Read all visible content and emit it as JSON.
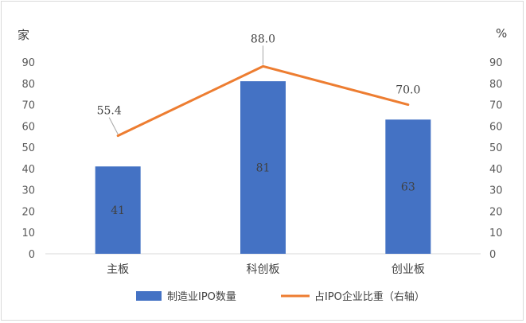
{
  "chart_data": {
    "type": "bar",
    "categories": [
      "主板",
      "科创板",
      "创业板"
    ],
    "series": [
      {
        "name": "制造业IPO数量",
        "type": "bar",
        "axis": "left",
        "values": [
          41,
          81,
          63
        ],
        "color": "#4472C4"
      },
      {
        "name": "占IPO企业比重（右轴）",
        "type": "line",
        "axis": "right",
        "values": [
          55.4,
          88.0,
          70.0
        ],
        "color": "#ED7D31"
      }
    ],
    "bar_labels": [
      "41",
      "81",
      "63"
    ],
    "line_labels": [
      "55.4",
      "88.0",
      "70.0"
    ],
    "y_left": {
      "unit": "家",
      "ylim": [
        0,
        90
      ],
      "ticks": [
        "0",
        "10",
        "20",
        "30",
        "40",
        "50",
        "60",
        "70",
        "80",
        "90"
      ]
    },
    "y_right": {
      "unit": "%",
      "ylim": [
        0,
        90
      ],
      "ticks": [
        "0",
        "10",
        "20",
        "30",
        "40",
        "50",
        "60",
        "70",
        "80",
        "90"
      ]
    },
    "grid": false,
    "legend": "bottom"
  }
}
